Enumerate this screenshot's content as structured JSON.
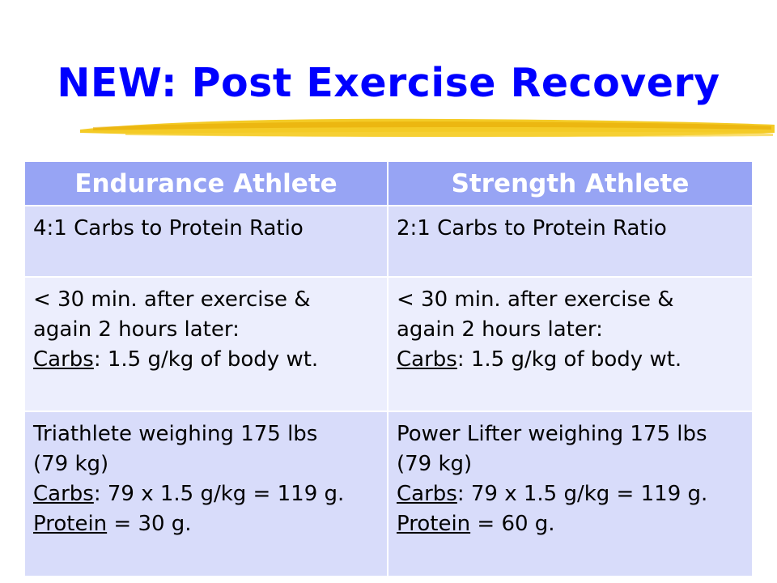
{
  "slide": {
    "title": "NEW: Post Exercise Recovery"
  },
  "table": {
    "headers": [
      "Endurance Athlete",
      "Strength Athlete"
    ],
    "rows": [
      {
        "endurance": {
          "line1": "4:1 Carbs to Protein Ratio"
        },
        "strength": {
          "line1": "2:1 Carbs to Protein Ratio"
        }
      },
      {
        "endurance": {
          "line1": "< 30 min. after exercise &",
          "line2": "again 2 hours later:",
          "carbs_label": "Carbs",
          "carbs_value": ": 1.5 g/kg of body wt."
        },
        "strength": {
          "line1": "< 30 min. after exercise &",
          "line2": "again 2 hours later:",
          "carbs_label": "Carbs",
          "carbs_value": ": 1.5 g/kg of body wt."
        }
      },
      {
        "endurance": {
          "line1": "Triathlete weighing 175 lbs",
          "line2": "(79 kg)",
          "carbs_label": "Carbs",
          "carbs_value": ": 79 x 1.5 g/kg = 119 g.",
          "protein_label": "Protein",
          "protein_value": " = 30 g."
        },
        "strength": {
          "line1": "Power Lifter weighing 175 lbs",
          "line2": "(79 kg)",
          "carbs_label": "Carbs",
          "carbs_value": ": 79 x 1.5 g/kg = 119 g.",
          "protein_label": "Protein",
          "protein_value": " = 60 g."
        }
      }
    ]
  },
  "colors": {
    "title": "#0000ff",
    "header_bg": "#97a4f4",
    "row_dark": "#d8dcfa",
    "row_light": "#eceefd",
    "highlight_stroke": "#f2c200"
  }
}
